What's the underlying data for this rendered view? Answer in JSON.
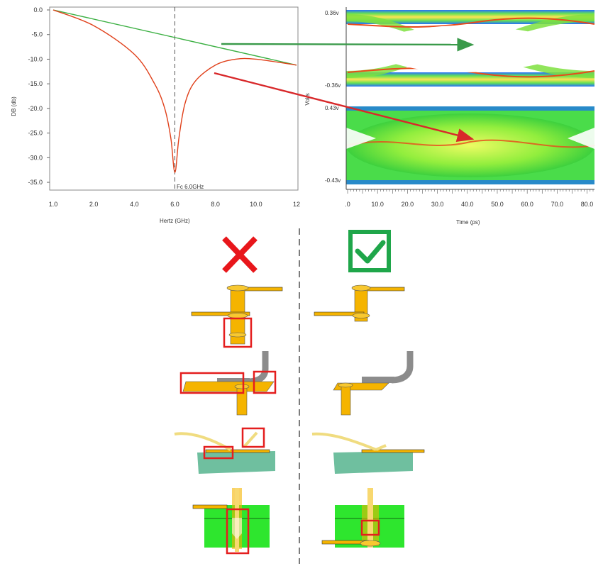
{
  "left_chart": {
    "xlabel": "Hertz (GHz)",
    "ylabel": "DB (db)",
    "x_ticks": [
      "1.0",
      "2.0",
      "4.0",
      "6.0",
      "8.0",
      "10.0",
      "12"
    ],
    "y_ticks": [
      "0.0",
      "-5.0",
      "-10.0",
      "-15.0",
      "-20.0",
      "-25.0",
      "-30.0",
      "-35.0"
    ],
    "marker_label": "Fc 6.0GHz"
  },
  "right_chart": {
    "xlabel": "Time (ps)",
    "ylabel": "Volts",
    "x_ticks": [
      ".0",
      "10.0",
      "20.0",
      "30.0",
      "40.0",
      "50.0",
      "60.0",
      "70.0",
      "80.0"
    ],
    "top_eye_labels": [
      "0.36v",
      "-0.36v"
    ],
    "bottom_eye_labels": [
      "0.43v",
      "-0.43v"
    ]
  },
  "chart_data": [
    {
      "type": "line",
      "xlabel": "Hertz (GHz)",
      "ylabel": "DB (db)",
      "xlim": [
        0,
        12
      ],
      "ylim": [
        -36,
        0
      ],
      "series": [
        {
          "color": "#3cb043",
          "x": [
            0,
            12
          ],
          "y": [
            0,
            -11.2
          ]
        },
        {
          "color": "#e0401a",
          "x": [
            0,
            2,
            4,
            5,
            5.5,
            5.8,
            6,
            6.2,
            6.5,
            7,
            8,
            9,
            10,
            12
          ],
          "y": [
            0,
            -3.2,
            -9,
            -15,
            -20,
            -26,
            -33,
            -26,
            -19,
            -14.5,
            -11.2,
            -10,
            -10,
            -11.2
          ]
        }
      ],
      "vline_x": 6,
      "annotations": [
        "Fc 6.0GHz"
      ]
    },
    {
      "type": "heatmap",
      "xlabel": "Time (ps)",
      "ylabel": "Volts",
      "xlim": [
        0,
        82
      ],
      "eyes": [
        {
          "levels": [
            "0.36v",
            "-0.36v"
          ],
          "opening": "open"
        },
        {
          "levels": [
            "0.43v",
            "-0.43v"
          ],
          "opening": "closed"
        }
      ]
    }
  ],
  "verdicts": {
    "bad_icon": "cross-mark",
    "good_icon": "check-mark",
    "bad_color": "#e8161b",
    "good_color": "#1fa64a"
  },
  "colors": {
    "gold": "#f5b400",
    "red_box": "#e41e1e",
    "green_board": "#2ee62e",
    "teal_board": "#6fbf9f",
    "gray_trace": "#8c8c8c",
    "green_arrow": "#3a9a4a",
    "red_arrow": "#d8282a"
  }
}
